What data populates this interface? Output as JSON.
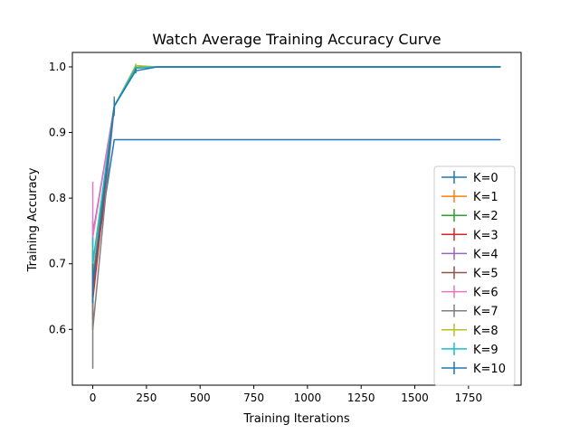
{
  "chart_data": {
    "type": "line",
    "title": "Watch Average Training Accuracy Curve",
    "xlabel": "Training Iterations",
    "ylabel": "Training Accuracy",
    "xlim": [
      -95,
      1995
    ],
    "ylim": [
      0.515,
      1.022
    ],
    "xticks": [
      0,
      250,
      500,
      750,
      1000,
      1250,
      1500,
      1750
    ],
    "yticks": [
      0.6,
      0.7,
      0.8,
      0.9,
      1.0
    ],
    "xtick_labels": [
      "0",
      "250",
      "500",
      "750",
      "1000",
      "1250",
      "1500",
      "1750"
    ],
    "ytick_labels": [
      "0.6",
      "0.7",
      "0.8",
      "0.9",
      "1.0"
    ],
    "grid": false,
    "legend_position": "lower-right",
    "error_bars": true,
    "series": [
      {
        "name": "K=0",
        "color": "#1f77b4",
        "x": [
          0,
          100,
          1900
        ],
        "y": [
          0.675,
          0.889,
          0.889
        ],
        "err": [
          0.03,
          0.0,
          0.0
        ]
      },
      {
        "name": "K=1",
        "color": "#ff7f0e",
        "x": [
          0,
          100,
          200,
          300,
          1900
        ],
        "y": [
          0.68,
          0.94,
          0.998,
          1.0,
          1.0
        ],
        "err": [
          0.04,
          0.005,
          0.003,
          0.0,
          0.0
        ]
      },
      {
        "name": "K=2",
        "color": "#2ca02c",
        "x": [
          0,
          100,
          200,
          300,
          1900
        ],
        "y": [
          0.66,
          0.94,
          0.998,
          1.0,
          1.0
        ],
        "err": [
          0.06,
          0.005,
          0.003,
          0.0,
          0.0
        ]
      },
      {
        "name": "K=3",
        "color": "#d62728",
        "x": [
          0,
          100,
          200,
          300,
          1900
        ],
        "y": [
          0.645,
          0.94,
          0.999,
          1.0,
          1.0
        ],
        "err": [
          0.03,
          0.005,
          0.002,
          0.0,
          0.0
        ]
      },
      {
        "name": "K=4",
        "color": "#9467bd",
        "x": [
          0,
          100,
          200,
          300,
          1900
        ],
        "y": [
          0.745,
          0.94,
          0.999,
          1.0,
          1.0
        ],
        "err": [
          0.02,
          0.005,
          0.002,
          0.0,
          0.0
        ]
      },
      {
        "name": "K=5",
        "color": "#8c564b",
        "x": [
          0,
          100,
          200,
          300,
          1900
        ],
        "y": [
          0.66,
          0.94,
          0.999,
          1.0,
          1.0
        ],
        "err": [
          0.02,
          0.005,
          0.002,
          0.0,
          0.0
        ]
      },
      {
        "name": "K=6",
        "color": "#e377c2",
        "x": [
          0,
          100,
          200,
          300,
          1900
        ],
        "y": [
          0.74,
          0.94,
          0.999,
          1.0,
          1.0
        ],
        "err": [
          0.085,
          0.005,
          0.002,
          0.0,
          0.0
        ]
      },
      {
        "name": "K=7",
        "color": "#7f7f7f",
        "x": [
          0,
          100,
          200,
          300,
          1900
        ],
        "y": [
          0.6,
          0.94,
          0.999,
          1.0,
          1.0
        ],
        "err": [
          0.06,
          0.015,
          0.002,
          0.0,
          0.0
        ]
      },
      {
        "name": "K=8",
        "color": "#bcbd22",
        "x": [
          0,
          100,
          200,
          300,
          1900
        ],
        "y": [
          0.7,
          0.94,
          1.002,
          1.0,
          1.0
        ],
        "err": [
          0.04,
          0.005,
          0.003,
          0.0,
          0.0
        ]
      },
      {
        "name": "K=9",
        "color": "#17becf",
        "x": [
          0,
          100,
          200,
          300,
          1900
        ],
        "y": [
          0.7,
          0.94,
          0.999,
          1.0,
          1.0
        ],
        "err": [
          0.04,
          0.005,
          0.002,
          0.0,
          0.0
        ]
      },
      {
        "name": "K=10",
        "color": "#1f77b4",
        "x": [
          0,
          100,
          200,
          300,
          1900
        ],
        "y": [
          0.67,
          0.94,
          0.994,
          1.0,
          1.0
        ],
        "err": [
          0.03,
          0.01,
          0.004,
          0.0,
          0.0
        ]
      }
    ]
  }
}
